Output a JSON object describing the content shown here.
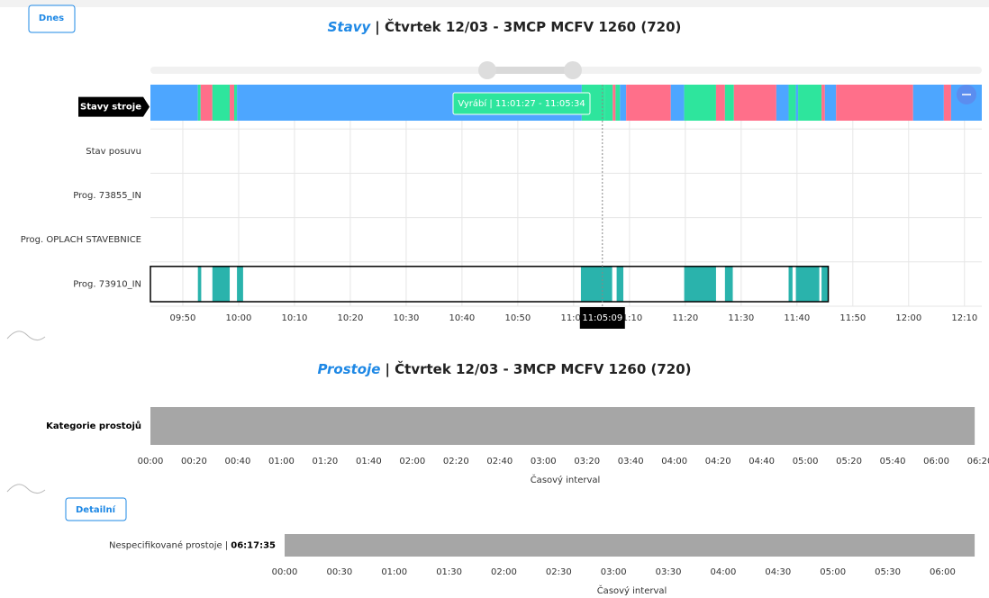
{
  "buttons": {
    "today": "Dnes",
    "detail": "Detailní"
  },
  "chart_data": [
    {
      "type": "timeline",
      "title": "Stavy",
      "subtitle": "| Čtvrtek 12/03 - 3MCP MCFV 1260 (720)",
      "xlim": [
        584.2,
        733.1
      ],
      "xticks": [
        {
          "value": 590,
          "label": "09:50"
        },
        {
          "value": 600,
          "label": "10:00"
        },
        {
          "value": 610,
          "label": "10:10"
        },
        {
          "value": 620,
          "label": "10:20"
        },
        {
          "value": 630,
          "label": "10:30"
        },
        {
          "value": 640,
          "label": "10:40"
        },
        {
          "value": 650,
          "label": "10:50"
        },
        {
          "value": 660,
          "label": "11:00"
        },
        {
          "value": 670,
          "label": "11:10"
        },
        {
          "value": 680,
          "label": "11:20"
        },
        {
          "value": 690,
          "label": "11:30"
        },
        {
          "value": 700,
          "label": "11:40"
        },
        {
          "value": 710,
          "label": "11:50"
        },
        {
          "value": 720,
          "label": "12:00"
        },
        {
          "value": 730,
          "label": "12:10"
        }
      ],
      "tooltip": "Vyrábí | 11:01:27 - 11:05:34",
      "cursor": {
        "value": 665.15,
        "label": "11:05:09"
      },
      "series": [
        {
          "name": "Stavy stroje",
          "segments": [
            {
              "start": 584.2,
              "end": 592.7,
              "color": "#4da6ff"
            },
            {
              "start": 592.7,
              "end": 593.2,
              "color": "#2ee59d"
            },
            {
              "start": 593.2,
              "end": 595.3,
              "color": "#ff6f8a"
            },
            {
              "start": 595.3,
              "end": 598.4,
              "color": "#2ee59d"
            },
            {
              "start": 598.4,
              "end": 599.2,
              "color": "#ff6f8a"
            },
            {
              "start": 599.2,
              "end": 599.7,
              "color": "#2ee59d"
            },
            {
              "start": 599.7,
              "end": 661.45,
              "color": "#4da6ff"
            },
            {
              "start": 661.45,
              "end": 665.57,
              "color": "#2ee59d"
            },
            {
              "start": 665.57,
              "end": 667,
              "color": "#2ee59d"
            },
            {
              "start": 667,
              "end": 667.5,
              "color": "#ff6f8a"
            },
            {
              "start": 667.5,
              "end": 668.3,
              "color": "#2ee59d"
            },
            {
              "start": 668.3,
              "end": 669.4,
              "color": "#4da6ff"
            },
            {
              "start": 669.4,
              "end": 677.4,
              "color": "#ff6f8a"
            },
            {
              "start": 677.4,
              "end": 679.8,
              "color": "#4da6ff"
            },
            {
              "start": 679.8,
              "end": 685.5,
              "color": "#2ee59d"
            },
            {
              "start": 685.5,
              "end": 687.1,
              "color": "#ff6f8a"
            },
            {
              "start": 687.1,
              "end": 688.7,
              "color": "#2ee59d"
            },
            {
              "start": 688.7,
              "end": 696.3,
              "color": "#ff6f8a"
            },
            {
              "start": 696.3,
              "end": 698.5,
              "color": "#4da6ff"
            },
            {
              "start": 698.5,
              "end": 699.8,
              "color": "#2ee59d"
            },
            {
              "start": 699.8,
              "end": 700.2,
              "color": "#4da6ff"
            },
            {
              "start": 700.2,
              "end": 704.4,
              "color": "#2ee59d"
            },
            {
              "start": 704.4,
              "end": 705,
              "color": "#ff6f8a"
            },
            {
              "start": 705,
              "end": 707,
              "color": "#4da6ff"
            },
            {
              "start": 707,
              "end": 720.8,
              "color": "#ff6f8a"
            },
            {
              "start": 720.8,
              "end": 726.3,
              "color": "#4da6ff"
            },
            {
              "start": 726.3,
              "end": 727.6,
              "color": "#ff6f8a"
            },
            {
              "start": 727.6,
              "end": 733.1,
              "color": "#4da6ff"
            }
          ]
        },
        {
          "name": "Stav posuvu",
          "segments": []
        },
        {
          "name": "Prog. 73855_IN",
          "segments": []
        },
        {
          "name": "Prog. OPLACH STAVEBNICE",
          "segments": []
        },
        {
          "name": "Prog. 73910_IN",
          "segments": [
            {
              "start": 592.7,
              "end": 593.3,
              "color": "#2ab3ac"
            },
            {
              "start": 595.3,
              "end": 598.4,
              "color": "#2ab3ac"
            },
            {
              "start": 599.7,
              "end": 600.8,
              "color": "#2ab3ac"
            },
            {
              "start": 661.3,
              "end": 666.9,
              "color": "#2ab3ac"
            },
            {
              "start": 667.7,
              "end": 668.9,
              "color": "#2ab3ac"
            },
            {
              "start": 679.8,
              "end": 685.5,
              "color": "#2ab3ac"
            },
            {
              "start": 687.1,
              "end": 688.5,
              "color": "#2ab3ac"
            },
            {
              "start": 698.5,
              "end": 699.2,
              "color": "#2ab3ac"
            },
            {
              "start": 699.8,
              "end": 704,
              "color": "#2ab3ac"
            },
            {
              "start": 704.4,
              "end": 705.6,
              "color": "#2ab3ac"
            }
          ]
        }
      ]
    },
    {
      "type": "timeline",
      "title": "Prostoje",
      "subtitle": "| Čtvrtek 12/03 - 3MCP MCFV 1260 (720)",
      "xlabel": "Časový interval",
      "xlim": [
        0,
        380
      ],
      "xticks": [
        {
          "value": 0,
          "label": "00:00"
        },
        {
          "value": 20,
          "label": "00:20"
        },
        {
          "value": 40,
          "label": "00:40"
        },
        {
          "value": 60,
          "label": "01:00"
        },
        {
          "value": 80,
          "label": "01:20"
        },
        {
          "value": 100,
          "label": "01:40"
        },
        {
          "value": 120,
          "label": "02:00"
        },
        {
          "value": 140,
          "label": "02:20"
        },
        {
          "value": 160,
          "label": "02:40"
        },
        {
          "value": 180,
          "label": "03:00"
        },
        {
          "value": 200,
          "label": "03:20"
        },
        {
          "value": 220,
          "label": "03:40"
        },
        {
          "value": 240,
          "label": "04:00"
        },
        {
          "value": 260,
          "label": "04:20"
        },
        {
          "value": 280,
          "label": "04:40"
        },
        {
          "value": 300,
          "label": "05:00"
        },
        {
          "value": 320,
          "label": "05:20"
        },
        {
          "value": 340,
          "label": "05:40"
        },
        {
          "value": 360,
          "label": "06:00"
        },
        {
          "value": 380,
          "label": "06:20"
        }
      ],
      "series": [
        {
          "name": "Kategorie prostojů",
          "segments": [
            {
              "start": 0,
              "end": 377.58,
              "color": "#a6a6a6"
            }
          ]
        }
      ]
    },
    {
      "type": "timeline",
      "xlabel": "Časový interval",
      "xlim": [
        0,
        380
      ],
      "xticks": [
        {
          "value": 0,
          "label": "00:00"
        },
        {
          "value": 30,
          "label": "00:30"
        },
        {
          "value": 60,
          "label": "01:00"
        },
        {
          "value": 90,
          "label": "01:30"
        },
        {
          "value": 120,
          "label": "02:00"
        },
        {
          "value": 150,
          "label": "02:30"
        },
        {
          "value": 180,
          "label": "03:00"
        },
        {
          "value": 210,
          "label": "03:30"
        },
        {
          "value": 240,
          "label": "04:00"
        },
        {
          "value": 270,
          "label": "04:30"
        },
        {
          "value": 300,
          "label": "05:00"
        },
        {
          "value": 330,
          "label": "05:30"
        },
        {
          "value": 360,
          "label": "06:00"
        }
      ],
      "series": [
        {
          "name": "Nespecifikované prostoje |",
          "total": "06:17:35",
          "segments": [
            {
              "start": 0,
              "end": 377.58,
              "color": "#a6a6a6"
            }
          ]
        }
      ]
    }
  ]
}
